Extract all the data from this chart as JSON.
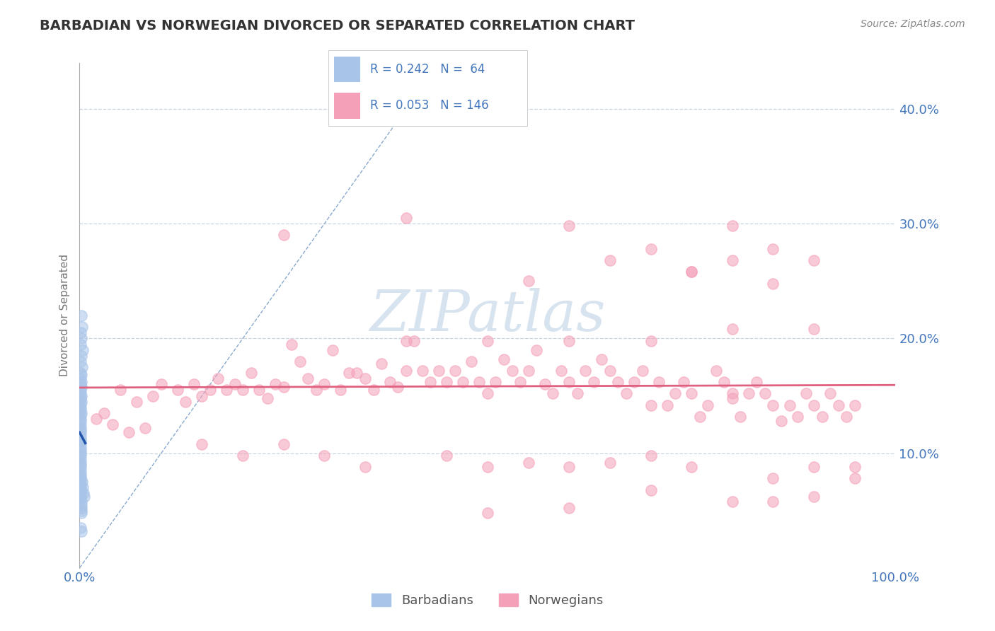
{
  "title": "BARBADIAN VS NORWEGIAN DIVORCED OR SEPARATED CORRELATION CHART",
  "source_text": "Source: ZipAtlas.com",
  "ylabel": "Divorced or Separated",
  "xlim": [
    0.0,
    1.0
  ],
  "ylim": [
    0.0,
    0.44
  ],
  "legend_r_barbadian": "0.242",
  "legend_n_barbadian": "64",
  "legend_r_norwegian": "0.053",
  "legend_n_norwegian": "146",
  "barbadian_color": "#a8c4e8",
  "norwegian_color": "#f4a0b8",
  "trend_barbadian_color": "#2255aa",
  "trend_norwegian_color": "#e06080",
  "ref_line_color": "#8aaace",
  "watermark_color": "#c8d8ea",
  "background_color": "#ffffff",
  "grid_color": "#c8d4e0",
  "tick_label_color": "#4477bb",
  "title_color": "#333333",
  "ytick_labels_right": [
    "10.0%",
    "20.0%",
    "30.0%",
    "40.0%"
  ],
  "ytick_vals": [
    0.1,
    0.2,
    0.3,
    0.4
  ],
  "barbadian_scatter": [
    [
      0.002,
      0.22
    ],
    [
      0.003,
      0.21
    ],
    [
      0.001,
      0.205
    ],
    [
      0.002,
      0.2
    ],
    [
      0.001,
      0.195
    ],
    [
      0.004,
      0.19
    ],
    [
      0.002,
      0.185
    ],
    [
      0.001,
      0.18
    ],
    [
      0.003,
      0.175
    ],
    [
      0.001,
      0.17
    ],
    [
      0.002,
      0.168
    ],
    [
      0.001,
      0.165
    ],
    [
      0.002,
      0.162
    ],
    [
      0.001,
      0.16
    ],
    [
      0.002,
      0.158
    ],
    [
      0.001,
      0.155
    ],
    [
      0.001,
      0.152
    ],
    [
      0.002,
      0.15
    ],
    [
      0.001,
      0.148
    ],
    [
      0.002,
      0.145
    ],
    [
      0.001,
      0.143
    ],
    [
      0.001,
      0.14
    ],
    [
      0.001,
      0.138
    ],
    [
      0.002,
      0.135
    ],
    [
      0.001,
      0.133
    ],
    [
      0.001,
      0.13
    ],
    [
      0.001,
      0.128
    ],
    [
      0.001,
      0.125
    ],
    [
      0.001,
      0.122
    ],
    [
      0.001,
      0.12
    ],
    [
      0.001,
      0.118
    ],
    [
      0.001,
      0.115
    ],
    [
      0.001,
      0.112
    ],
    [
      0.001,
      0.11
    ],
    [
      0.001,
      0.108
    ],
    [
      0.001,
      0.105
    ],
    [
      0.001,
      0.102
    ],
    [
      0.001,
      0.1
    ],
    [
      0.001,
      0.098
    ],
    [
      0.001,
      0.095
    ],
    [
      0.001,
      0.092
    ],
    [
      0.001,
      0.09
    ],
    [
      0.001,
      0.088
    ],
    [
      0.001,
      0.085
    ],
    [
      0.001,
      0.082
    ],
    [
      0.001,
      0.08
    ],
    [
      0.001,
      0.078
    ],
    [
      0.001,
      0.075
    ],
    [
      0.001,
      0.072
    ],
    [
      0.001,
      0.07
    ],
    [
      0.001,
      0.068
    ],
    [
      0.001,
      0.065
    ],
    [
      0.001,
      0.062
    ],
    [
      0.001,
      0.06
    ],
    [
      0.002,
      0.058
    ],
    [
      0.002,
      0.055
    ],
    [
      0.002,
      0.052
    ],
    [
      0.002,
      0.05
    ],
    [
      0.002,
      0.048
    ],
    [
      0.003,
      0.075
    ],
    [
      0.004,
      0.07
    ],
    [
      0.005,
      0.065
    ],
    [
      0.006,
      0.062
    ],
    [
      0.001,
      0.035
    ],
    [
      0.002,
      0.032
    ]
  ],
  "norwegian_scatter": [
    [
      0.05,
      0.155
    ],
    [
      0.07,
      0.145
    ],
    [
      0.09,
      0.15
    ],
    [
      0.1,
      0.16
    ],
    [
      0.12,
      0.155
    ],
    [
      0.13,
      0.145
    ],
    [
      0.14,
      0.16
    ],
    [
      0.15,
      0.15
    ],
    [
      0.16,
      0.155
    ],
    [
      0.17,
      0.165
    ],
    [
      0.18,
      0.155
    ],
    [
      0.19,
      0.16
    ],
    [
      0.2,
      0.155
    ],
    [
      0.21,
      0.17
    ],
    [
      0.22,
      0.155
    ],
    [
      0.23,
      0.148
    ],
    [
      0.24,
      0.16
    ],
    [
      0.25,
      0.158
    ],
    [
      0.26,
      0.195
    ],
    [
      0.27,
      0.18
    ],
    [
      0.28,
      0.165
    ],
    [
      0.29,
      0.155
    ],
    [
      0.3,
      0.16
    ],
    [
      0.31,
      0.19
    ],
    [
      0.32,
      0.155
    ],
    [
      0.33,
      0.17
    ],
    [
      0.34,
      0.17
    ],
    [
      0.35,
      0.165
    ],
    [
      0.36,
      0.155
    ],
    [
      0.37,
      0.178
    ],
    [
      0.38,
      0.162
    ],
    [
      0.39,
      0.158
    ],
    [
      0.4,
      0.172
    ],
    [
      0.41,
      0.198
    ],
    [
      0.42,
      0.172
    ],
    [
      0.43,
      0.162
    ],
    [
      0.44,
      0.172
    ],
    [
      0.45,
      0.162
    ],
    [
      0.46,
      0.172
    ],
    [
      0.47,
      0.162
    ],
    [
      0.48,
      0.18
    ],
    [
      0.49,
      0.162
    ],
    [
      0.5,
      0.152
    ],
    [
      0.51,
      0.162
    ],
    [
      0.52,
      0.182
    ],
    [
      0.53,
      0.172
    ],
    [
      0.54,
      0.162
    ],
    [
      0.55,
      0.172
    ],
    [
      0.56,
      0.19
    ],
    [
      0.57,
      0.16
    ],
    [
      0.58,
      0.152
    ],
    [
      0.59,
      0.172
    ],
    [
      0.6,
      0.162
    ],
    [
      0.61,
      0.152
    ],
    [
      0.62,
      0.172
    ],
    [
      0.63,
      0.162
    ],
    [
      0.64,
      0.182
    ],
    [
      0.65,
      0.172
    ],
    [
      0.66,
      0.162
    ],
    [
      0.67,
      0.152
    ],
    [
      0.68,
      0.162
    ],
    [
      0.69,
      0.172
    ],
    [
      0.7,
      0.142
    ],
    [
      0.71,
      0.162
    ],
    [
      0.72,
      0.142
    ],
    [
      0.73,
      0.152
    ],
    [
      0.74,
      0.162
    ],
    [
      0.75,
      0.152
    ],
    [
      0.76,
      0.132
    ],
    [
      0.77,
      0.142
    ],
    [
      0.78,
      0.172
    ],
    [
      0.79,
      0.162
    ],
    [
      0.8,
      0.152
    ],
    [
      0.81,
      0.132
    ],
    [
      0.82,
      0.152
    ],
    [
      0.83,
      0.162
    ],
    [
      0.84,
      0.152
    ],
    [
      0.85,
      0.142
    ],
    [
      0.86,
      0.128
    ],
    [
      0.87,
      0.142
    ],
    [
      0.88,
      0.132
    ],
    [
      0.89,
      0.152
    ],
    [
      0.9,
      0.142
    ],
    [
      0.91,
      0.132
    ],
    [
      0.92,
      0.152
    ],
    [
      0.93,
      0.142
    ],
    [
      0.94,
      0.132
    ],
    [
      0.95,
      0.142
    ],
    [
      0.04,
      0.125
    ],
    [
      0.06,
      0.118
    ],
    [
      0.08,
      0.122
    ],
    [
      0.03,
      0.135
    ],
    [
      0.02,
      0.13
    ],
    [
      0.25,
      0.29
    ],
    [
      0.4,
      0.305
    ],
    [
      0.55,
      0.25
    ],
    [
      0.65,
      0.268
    ],
    [
      0.75,
      0.258
    ],
    [
      0.8,
      0.268
    ],
    [
      0.85,
      0.278
    ],
    [
      0.9,
      0.268
    ],
    [
      0.6,
      0.298
    ],
    [
      0.7,
      0.278
    ],
    [
      0.75,
      0.258
    ],
    [
      0.8,
      0.298
    ],
    [
      0.85,
      0.248
    ],
    [
      0.35,
      0.088
    ],
    [
      0.45,
      0.098
    ],
    [
      0.5,
      0.088
    ],
    [
      0.55,
      0.092
    ],
    [
      0.6,
      0.088
    ],
    [
      0.65,
      0.092
    ],
    [
      0.7,
      0.098
    ],
    [
      0.75,
      0.088
    ],
    [
      0.15,
      0.108
    ],
    [
      0.2,
      0.098
    ],
    [
      0.25,
      0.108
    ],
    [
      0.3,
      0.098
    ],
    [
      0.8,
      0.148
    ],
    [
      0.85,
      0.078
    ],
    [
      0.9,
      0.088
    ],
    [
      0.95,
      0.078
    ],
    [
      0.5,
      0.048
    ],
    [
      0.6,
      0.052
    ],
    [
      0.7,
      0.068
    ],
    [
      0.8,
      0.058
    ],
    [
      0.85,
      0.058
    ],
    [
      0.9,
      0.062
    ],
    [
      0.95,
      0.088
    ],
    [
      0.4,
      0.198
    ],
    [
      0.5,
      0.198
    ],
    [
      0.6,
      0.198
    ],
    [
      0.7,
      0.198
    ],
    [
      0.8,
      0.208
    ],
    [
      0.9,
      0.208
    ]
  ]
}
